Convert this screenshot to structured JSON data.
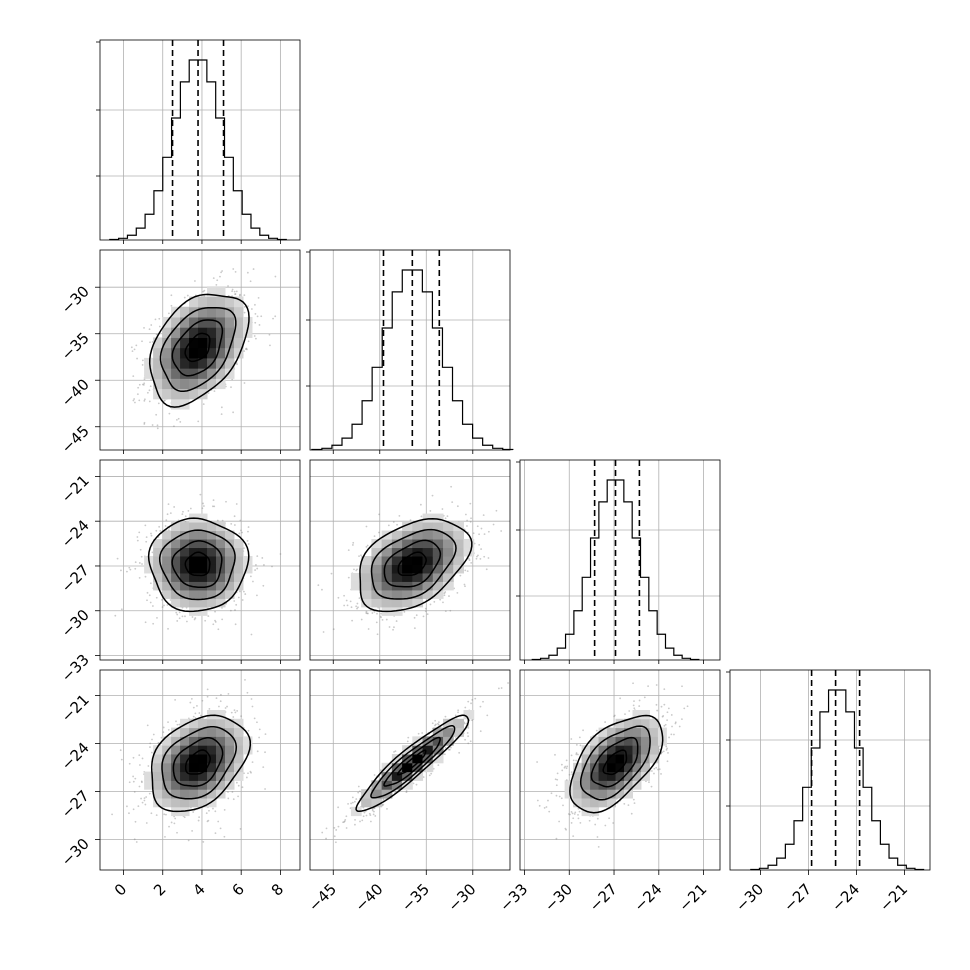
{
  "chart_data": {
    "type": "corner",
    "grid": true,
    "parameters": [
      {
        "range": [
          -1.2,
          9.0
        ],
        "quantiles": [
          2.5,
          3.8,
          5.1
        ],
        "ticks": [
          0,
          2,
          4,
          6,
          8
        ],
        "tick_labels": [
          "0",
          "2",
          "4",
          "6",
          "8"
        ],
        "hist_mode": 3.8,
        "hist_sigma": 1.25
      },
      {
        "range": [
          -47.5,
          -26.0
        ],
        "quantiles": [
          -39.6,
          -36.5,
          -33.6
        ],
        "ticks": [
          -45,
          -40,
          -35,
          -30
        ],
        "tick_labels": [
          "−45",
          "−40",
          "−35",
          "−30"
        ],
        "hist_mode": -36.5,
        "hist_sigma": 3.0
      },
      {
        "range": [
          -33.3,
          -19.9
        ],
        "quantiles": [
          -28.3,
          -26.9,
          -25.3
        ],
        "ticks": [
          -33,
          -30,
          -27,
          -24,
          -21
        ],
        "tick_labels": [
          "−33",
          "−30",
          "−27",
          "−24",
          "−21"
        ],
        "hist_mode": -26.9,
        "hist_sigma": 1.55
      },
      {
        "range": [
          -31.9,
          -19.4
        ],
        "quantiles": [
          -26.8,
          -25.3,
          -23.8
        ],
        "ticks": [
          -30,
          -27,
          -24,
          -21
        ],
        "tick_labels": [
          "−30",
          "−27",
          "−24",
          "−21"
        ],
        "hist_mode": -25.2,
        "hist_sigma": 1.5
      }
    ],
    "correlations": [
      [
        1.0,
        0.4,
        0.0,
        0.35
      ],
      [
        0.4,
        1.0,
        0.4,
        0.93
      ],
      [
        0.0,
        0.4,
        1.0,
        0.55
      ],
      [
        0.35,
        0.93,
        0.55,
        1.0
      ]
    ],
    "contour_levels_sigma": [
      0.5,
      1.0,
      1.5,
      2.0
    ]
  }
}
